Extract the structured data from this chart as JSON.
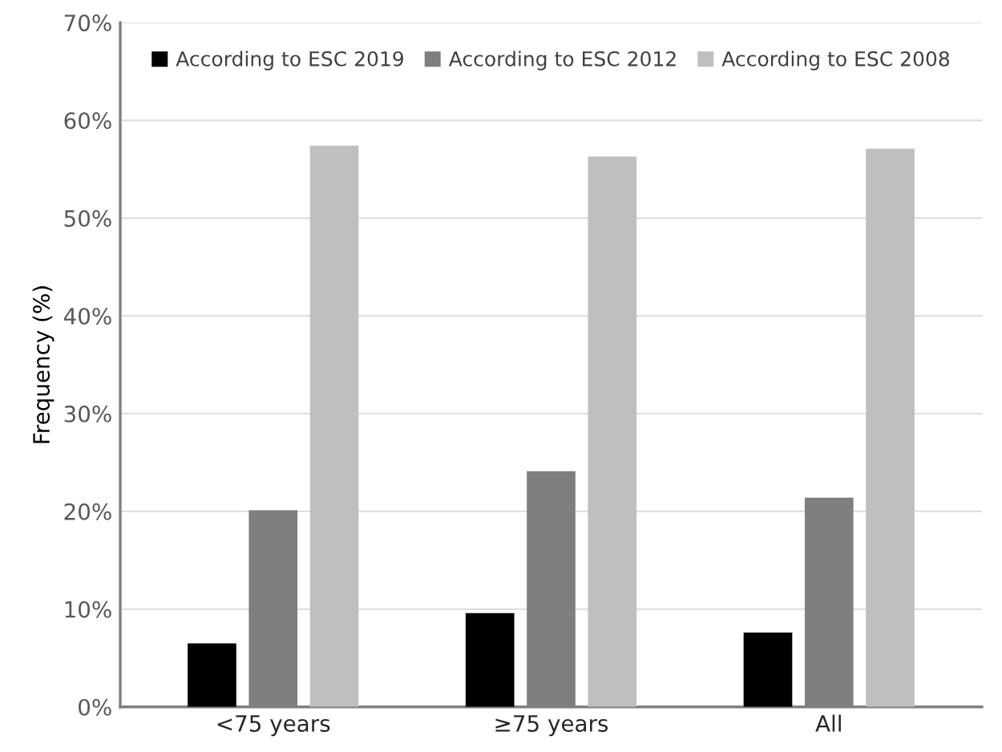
{
  "chart_data": {
    "type": "bar",
    "ylabel": "Frequency (%)",
    "categories": [
      "<75 years",
      "≥75 years",
      "All"
    ],
    "series": [
      {
        "name": "According to ESC 2019",
        "color": "#000000",
        "values": [
          6.5,
          9.6,
          7.6
        ]
      },
      {
        "name": "According to ESC 2012",
        "color": "#7f7f7f",
        "values": [
          20.1,
          24.1,
          21.4
        ]
      },
      {
        "name": "According to ESC 2008",
        "color": "#bfbfbf",
        "values": [
          57.4,
          56.3,
          57.1
        ]
      }
    ],
    "ylim": [
      0,
      70
    ],
    "yticks": [
      {
        "value": 0,
        "label": "0%"
      },
      {
        "value": 10,
        "label": "10%"
      },
      {
        "value": 20,
        "label": "20%"
      },
      {
        "value": 30,
        "label": "30%"
      },
      {
        "value": 40,
        "label": "40%"
      },
      {
        "value": 50,
        "label": "50%"
      },
      {
        "value": 60,
        "label": "60%"
      },
      {
        "value": 70,
        "label": "70%"
      }
    ],
    "grid": "y",
    "legend": "top"
  }
}
